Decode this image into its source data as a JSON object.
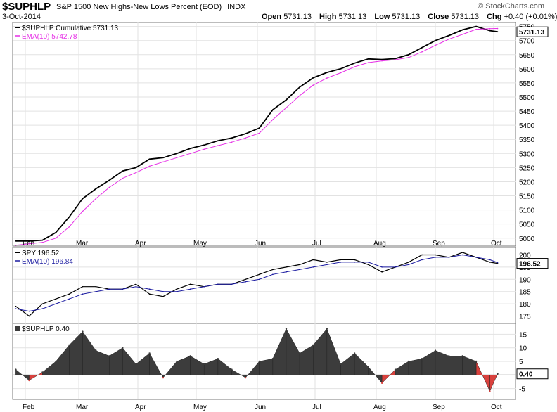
{
  "header": {
    "symbol": "$SUPHLP",
    "description": "S&P 1500 New Highs-New Lows Percent (EOD)",
    "type": "INDX",
    "watermark": "© StockCharts.com",
    "date": "3-Oct-2014",
    "open_label": "Open",
    "open": "5731.13",
    "high_label": "High",
    "high": "5731.13",
    "low_label": "Low",
    "low": "5731.13",
    "close_label": "Close",
    "close": "5731.13",
    "chg_label": "Chg",
    "chg": "+0.40 (+0.01%)"
  },
  "colors": {
    "price": "#000000",
    "ema_main": "#e62ee6",
    "ema_spy": "#1a1aa0",
    "hist_pos": "#3c3c3c",
    "hist_neg": "#d9413d",
    "grid": "#e2e2e2",
    "border": "#7a7a7a"
  },
  "chart_data": [
    {
      "type": "line",
      "legend": [
        "$SUPHLP Cumulative 5731.13",
        "EMA(10) 5742.78"
      ],
      "x_ticks": [
        "Feb",
        "Mar",
        "Apr",
        "May",
        "Jun",
        "Jul",
        "Aug",
        "Sep",
        "Oct"
      ],
      "y_ticks": [
        5000,
        5050,
        5100,
        5150,
        5200,
        5250,
        5300,
        5350,
        5400,
        5450,
        5500,
        5550,
        5600,
        5650,
        5700,
        5750
      ],
      "ylim": [
        4972,
        5764
      ],
      "last_label": "5731.13",
      "x": [
        "2014-01-27",
        "2014-02-03",
        "2014-02-10",
        "2014-02-17",
        "2014-02-24",
        "2014-03-03",
        "2014-03-10",
        "2014-03-17",
        "2014-03-24",
        "2014-03-31",
        "2014-04-07",
        "2014-04-14",
        "2014-04-21",
        "2014-04-28",
        "2014-05-05",
        "2014-05-12",
        "2014-05-19",
        "2014-05-26",
        "2014-06-02",
        "2014-06-09",
        "2014-06-16",
        "2014-06-23",
        "2014-06-30",
        "2014-07-07",
        "2014-07-14",
        "2014-07-21",
        "2014-07-28",
        "2014-08-04",
        "2014-08-11",
        "2014-08-18",
        "2014-08-25",
        "2014-09-01",
        "2014-09-08",
        "2014-09-15",
        "2014-09-22",
        "2014-09-29",
        "2014-10-03"
      ],
      "series": [
        {
          "name": "$SUPHLP Cumulative",
          "values": [
            4990,
            4990,
            4993,
            5020,
            5075,
            5140,
            5175,
            5205,
            5238,
            5250,
            5280,
            5285,
            5300,
            5318,
            5330,
            5345,
            5355,
            5370,
            5390,
            5455,
            5490,
            5535,
            5568,
            5587,
            5600,
            5620,
            5635,
            5633,
            5636,
            5650,
            5675,
            5700,
            5718,
            5738,
            5750,
            5735,
            5731.13
          ]
        },
        {
          "name": "EMA(10)",
          "values": [
            4975,
            4980,
            4985,
            5000,
            5040,
            5095,
            5140,
            5180,
            5212,
            5232,
            5255,
            5270,
            5285,
            5300,
            5315,
            5328,
            5340,
            5355,
            5372,
            5420,
            5462,
            5505,
            5542,
            5567,
            5586,
            5607,
            5622,
            5628,
            5632,
            5640,
            5660,
            5683,
            5705,
            5722,
            5740,
            5742,
            5742.78
          ]
        }
      ]
    },
    {
      "type": "line",
      "legend": [
        "SPY 196.52",
        "EMA(10) 196.84"
      ],
      "y_ticks": [
        175,
        180,
        185,
        190,
        195,
        200
      ],
      "ylim": [
        172,
        203
      ],
      "last_label": "196.52",
      "x": [
        "2014-01-27",
        "2014-02-03",
        "2014-02-10",
        "2014-02-17",
        "2014-02-24",
        "2014-03-03",
        "2014-03-10",
        "2014-03-17",
        "2014-03-24",
        "2014-03-31",
        "2014-04-07",
        "2014-04-14",
        "2014-04-21",
        "2014-04-28",
        "2014-05-05",
        "2014-05-12",
        "2014-05-19",
        "2014-05-26",
        "2014-06-02",
        "2014-06-09",
        "2014-06-16",
        "2014-06-23",
        "2014-06-30",
        "2014-07-07",
        "2014-07-14",
        "2014-07-21",
        "2014-07-28",
        "2014-08-04",
        "2014-08-11",
        "2014-08-18",
        "2014-08-25",
        "2014-09-01",
        "2014-09-08",
        "2014-09-15",
        "2014-09-22",
        "2014-09-29",
        "2014-10-03"
      ],
      "series": [
        {
          "name": "SPY",
          "values": [
            179,
            175,
            180,
            182,
            184,
            187,
            187,
            186,
            186,
            188,
            184,
            183,
            186,
            188,
            187,
            188,
            188,
            190,
            192,
            194,
            195,
            196,
            198,
            197,
            198,
            198,
            196,
            193,
            195,
            197,
            200,
            200,
            199,
            201,
            199,
            197,
            196.52
          ]
        },
        {
          "name": "EMA(10)",
          "values": [
            178,
            177,
            178,
            180,
            182,
            184,
            185,
            186,
            186,
            187,
            186,
            185,
            185,
            186,
            187,
            188,
            188,
            189,
            190,
            192,
            193,
            194,
            195,
            196,
            197,
            197,
            197,
            195,
            195,
            196,
            198,
            199,
            199,
            200,
            199,
            198,
            196.84
          ]
        }
      ]
    },
    {
      "type": "area",
      "legend": [
        "$SUPHLP 0.40"
      ],
      "y_ticks": [
        -5,
        5,
        10,
        15
      ],
      "ylim": [
        -9,
        19
      ],
      "last_label": "0.40",
      "x": [
        "2014-01-27",
        "2014-02-03",
        "2014-02-10",
        "2014-02-17",
        "2014-02-24",
        "2014-03-03",
        "2014-03-10",
        "2014-03-17",
        "2014-03-24",
        "2014-03-31",
        "2014-04-07",
        "2014-04-14",
        "2014-04-21",
        "2014-04-28",
        "2014-05-05",
        "2014-05-12",
        "2014-05-19",
        "2014-05-26",
        "2014-06-02",
        "2014-06-09",
        "2014-06-16",
        "2014-06-23",
        "2014-06-30",
        "2014-07-07",
        "2014-07-14",
        "2014-07-21",
        "2014-07-28",
        "2014-08-04",
        "2014-08-11",
        "2014-08-18",
        "2014-08-25",
        "2014-09-01",
        "2014-09-08",
        "2014-09-15",
        "2014-09-22",
        "2014-09-29",
        "2014-10-03"
      ],
      "values": [
        2,
        -2,
        1,
        5,
        11,
        16,
        9,
        7,
        10,
        4,
        8,
        -1,
        5,
        7,
        4,
        6,
        2,
        -1,
        5,
        6,
        17,
        8,
        11,
        17,
        4,
        8,
        3,
        -3,
        2,
        5,
        6,
        9,
        7,
        7,
        5,
        -6,
        0.4
      ]
    }
  ]
}
